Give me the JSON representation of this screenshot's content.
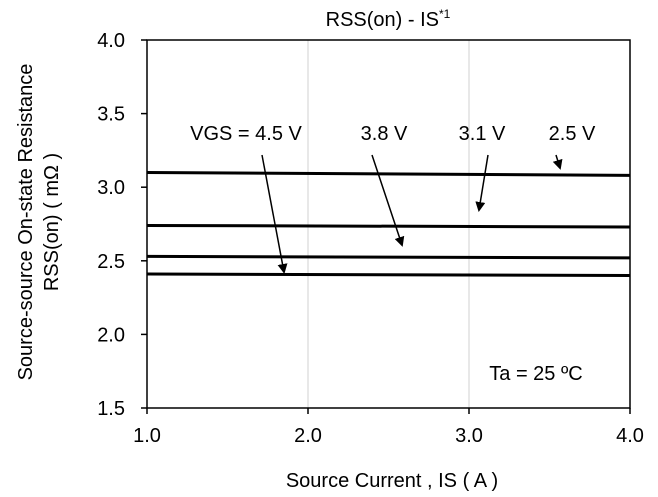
{
  "chart_data": {
    "type": "line",
    "title": "RSS(on) - IS",
    "title_sup": "*1",
    "xlabel": "Source Current , IS ( A )",
    "ylabel_line1": "Source-source On-state Resistance",
    "ylabel_line2": "RSS(on)  ( mΩ )",
    "xlim": [
      1.0,
      4.0
    ],
    "ylim": [
      1.5,
      4.0
    ],
    "x_ticks": [
      "1.0",
      "2.0",
      "3.0",
      "4.0"
    ],
    "y_ticks": [
      "1.5",
      "2.0",
      "2.5",
      "3.0",
      "3.5",
      "4.0"
    ],
    "grid": "vertical",
    "series": [
      {
        "name": "VGS = 4.5 V",
        "x": [
          1.0,
          4.0
        ],
        "y": [
          2.41,
          2.4
        ]
      },
      {
        "name": "3.8 V",
        "x": [
          1.0,
          4.0
        ],
        "y": [
          2.53,
          2.52
        ]
      },
      {
        "name": "3.1 V",
        "x": [
          1.0,
          4.0
        ],
        "y": [
          2.74,
          2.73
        ]
      },
      {
        "name": "2.5 V",
        "x": [
          1.0,
          4.0
        ],
        "y": [
          3.1,
          3.08
        ]
      }
    ],
    "annotation": "Ta = 25 ºC",
    "line_color": "#000000"
  }
}
